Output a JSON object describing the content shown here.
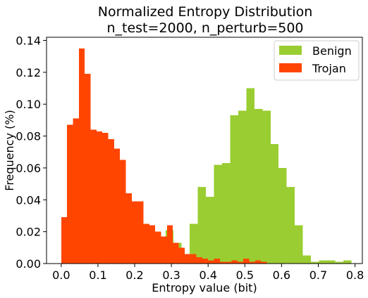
{
  "chart_data": {
    "type": "histogram",
    "title": [
      "Normalized Entropy Distribution",
      "n_test=2000, n_perturb=500"
    ],
    "xlabel": "Entropy value (bit)",
    "ylabel": "Frequency (%)",
    "xlim": [
      -0.04,
      0.82
    ],
    "ylim": [
      0,
      0.142
    ],
    "xticks": [
      "0.0",
      "0.1",
      "0.2",
      "0.3",
      "0.4",
      "0.5",
      "0.6",
      "0.7",
      "0.8"
    ],
    "yticks": [
      "0.00",
      "0.02",
      "0.04",
      "0.06",
      "0.08",
      "0.10",
      "0.12",
      "0.14"
    ],
    "grid": false,
    "legend_position": "top-right",
    "series": [
      {
        "name": "Benign",
        "color": "#9acd32",
        "bins": [
          [
            0.196,
            0.218,
            0.001
          ],
          [
            0.218,
            0.24,
            0.004
          ],
          [
            0.24,
            0.262,
            0.005
          ],
          [
            0.262,
            0.284,
            0.009
          ],
          [
            0.284,
            0.306,
            0.021
          ],
          [
            0.306,
            0.328,
            0.013
          ],
          [
            0.328,
            0.35,
            0.005
          ],
          [
            0.35,
            0.372,
            0.025
          ],
          [
            0.372,
            0.394,
            0.048
          ],
          [
            0.394,
            0.416,
            0.042
          ],
          [
            0.416,
            0.438,
            0.062
          ],
          [
            0.438,
            0.46,
            0.063
          ],
          [
            0.46,
            0.482,
            0.093
          ],
          [
            0.482,
            0.504,
            0.096
          ],
          [
            0.504,
            0.526,
            0.11
          ],
          [
            0.526,
            0.548,
            0.097
          ],
          [
            0.548,
            0.57,
            0.096
          ],
          [
            0.57,
            0.592,
            0.075
          ],
          [
            0.592,
            0.614,
            0.06
          ],
          [
            0.614,
            0.636,
            0.048
          ],
          [
            0.636,
            0.658,
            0.024
          ],
          [
            0.658,
            0.68,
            0.005
          ],
          [
            0.68,
            0.702,
            0.001
          ],
          [
            0.702,
            0.724,
            0.002
          ],
          [
            0.724,
            0.746,
            0.002
          ],
          [
            0.746,
            0.768,
            0.001
          ],
          [
            0.768,
            0.79,
            0.002
          ]
        ]
      },
      {
        "name": "Trojan",
        "color": "#ff4500",
        "bins": [
          [
            0.0,
            0.016,
            0.029
          ],
          [
            0.016,
            0.032,
            0.087
          ],
          [
            0.032,
            0.048,
            0.091
          ],
          [
            0.048,
            0.064,
            0.135
          ],
          [
            0.064,
            0.08,
            0.119
          ],
          [
            0.08,
            0.096,
            0.084
          ],
          [
            0.096,
            0.112,
            0.083
          ],
          [
            0.112,
            0.128,
            0.082
          ],
          [
            0.128,
            0.144,
            0.078
          ],
          [
            0.144,
            0.16,
            0.072
          ],
          [
            0.16,
            0.176,
            0.065
          ],
          [
            0.176,
            0.192,
            0.044
          ],
          [
            0.192,
            0.208,
            0.039
          ],
          [
            0.208,
            0.224,
            0.039
          ],
          [
            0.224,
            0.24,
            0.025
          ],
          [
            0.24,
            0.256,
            0.024
          ],
          [
            0.256,
            0.272,
            0.02
          ],
          [
            0.272,
            0.288,
            0.017
          ],
          [
            0.288,
            0.304,
            0.024
          ],
          [
            0.304,
            0.32,
            0.013
          ],
          [
            0.32,
            0.336,
            0.01
          ],
          [
            0.336,
            0.352,
            0.006
          ],
          [
            0.352,
            0.368,
            0.006
          ],
          [
            0.368,
            0.384,
            0.004
          ],
          [
            0.384,
            0.4,
            0.003
          ],
          [
            0.4,
            0.416,
            0.002
          ],
          [
            0.416,
            0.432,
            0.003
          ],
          [
            0.432,
            0.448,
            0.001
          ],
          [
            0.448,
            0.464,
            0.001
          ],
          [
            0.464,
            0.48,
            0.002
          ],
          [
            0.48,
            0.496,
            0.001
          ],
          [
            0.496,
            0.512,
            0.003
          ],
          [
            0.512,
            0.528,
            0.001
          ],
          [
            0.528,
            0.544,
            0.002
          ],
          [
            0.544,
            0.56,
            0.001
          ]
        ]
      }
    ]
  }
}
